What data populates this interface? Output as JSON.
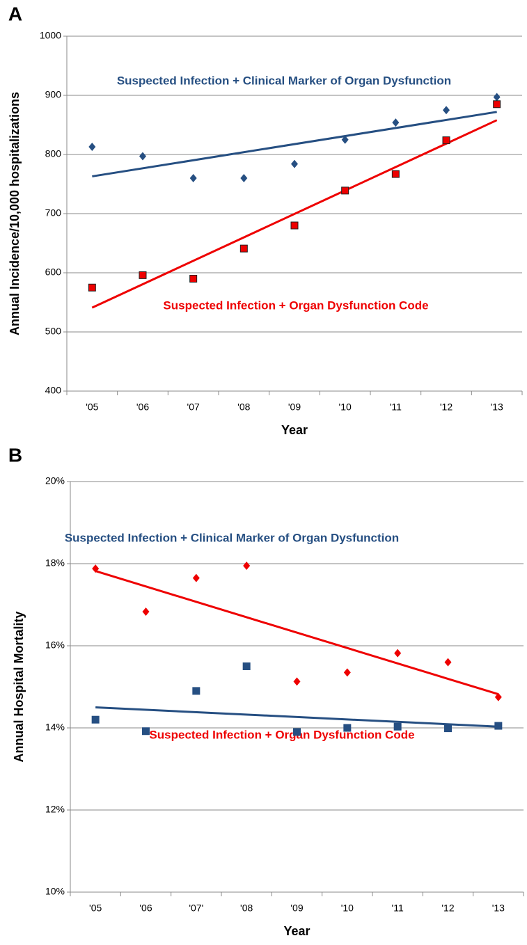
{
  "chart_data": [
    {
      "type": "scatter",
      "panel_label": "A",
      "y_label": "Annual Incidence/10,000 hospitalizations",
      "x_label": "Year",
      "categories": [
        "'05",
        "'06",
        "'07",
        "'08",
        "'09",
        "'10",
        "'11",
        "'12",
        "'13"
      ],
      "ylim": [
        400,
        1000
      ],
      "yticks": [
        400,
        500,
        600,
        700,
        800,
        900,
        1000
      ],
      "grid": true,
      "series": [
        {
          "name": "Suspected Infection + Clinical Marker of Organ Dysfunction",
          "color": "#264f82",
          "marker": "diamond",
          "values": [
            813,
            797,
            760,
            760,
            784,
            825,
            854,
            875,
            897
          ],
          "trend": [
            763,
            872
          ]
        },
        {
          "name": "Suspected Infection + Organ Dysfunction Code",
          "color": "#ee0000",
          "marker": "square",
          "values": [
            575,
            596,
            590,
            641,
            680,
            739,
            767,
            824,
            885
          ],
          "trend": [
            541,
            858
          ]
        }
      ]
    },
    {
      "type": "scatter",
      "panel_label": "B",
      "y_label": "Annual Hospital Mortality",
      "x_label": "Year",
      "categories": [
        "'05",
        "'06",
        "'07'",
        "'08",
        "'09",
        "'10",
        "'11",
        "'12",
        "'13"
      ],
      "ylim": [
        10,
        20
      ],
      "yticks": [
        {
          "value": 10,
          "label": "10%"
        },
        {
          "value": 12,
          "label": "12%"
        },
        {
          "value": 14,
          "label": "14%"
        },
        {
          "value": 16,
          "label": "16%"
        },
        {
          "value": 18,
          "label": "18%"
        },
        {
          "value": 20,
          "label": "20%"
        }
      ],
      "grid": true,
      "series": [
        {
          "name": "Suspected Infection + Organ Dysfunction Code",
          "color": "#ee0000",
          "marker": "diamond",
          "values": [
            17.88,
            16.83,
            17.65,
            17.95,
            15.13,
            15.35,
            15.82,
            15.6,
            14.75
          ],
          "trend": [
            17.82,
            14.82
          ]
        },
        {
          "name": "Suspected Infection + Clinical Marker of Organ Dysfunction",
          "color": "#264f82",
          "marker": "square",
          "values": [
            14.2,
            13.92,
            14.9,
            15.5,
            13.9,
            14.0,
            14.03,
            13.99,
            14.05
          ],
          "trend": [
            14.5,
            14.03
          ]
        }
      ]
    }
  ]
}
